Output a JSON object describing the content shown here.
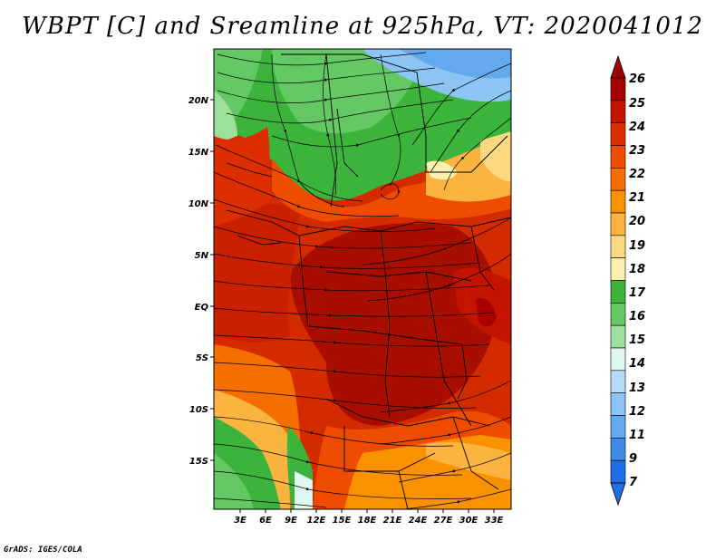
{
  "title": "WBPT [C] and Sreamline at 925hPa, VT: 2020041012",
  "credit": "GrADS: IGES/COLA",
  "lat_labels": [
    "20N",
    "15N",
    "10N",
    "5N",
    "EQ",
    "5S",
    "10S",
    "15S"
  ],
  "lon_labels": [
    "3E",
    "6E",
    "9E",
    "12E",
    "15E",
    "18E",
    "21E",
    "24E",
    "27E",
    "30E",
    "33E"
  ],
  "colorbar": {
    "labels": [
      "26",
      "25",
      "24",
      "23",
      "22",
      "21",
      "20",
      "19",
      "18",
      "17",
      "16",
      "15",
      "14",
      "13",
      "12",
      "11",
      "9",
      "7"
    ],
    "colors": [
      "#a80000",
      "#c41400",
      "#dc2e00",
      "#ee4c00",
      "#f66e00",
      "#fa9200",
      "#fcb440",
      "#fcd880",
      "#fcf0b0",
      "#3cb43c",
      "#64c864",
      "#9ce09c",
      "#e0f8f0",
      "#b4dcf8",
      "#8cc4f4",
      "#64a8ee",
      "#3c8ce6",
      "#1e6ee6"
    ],
    "top_color": "#a00000",
    "bottom_color": "#1e6ee6"
  }
}
